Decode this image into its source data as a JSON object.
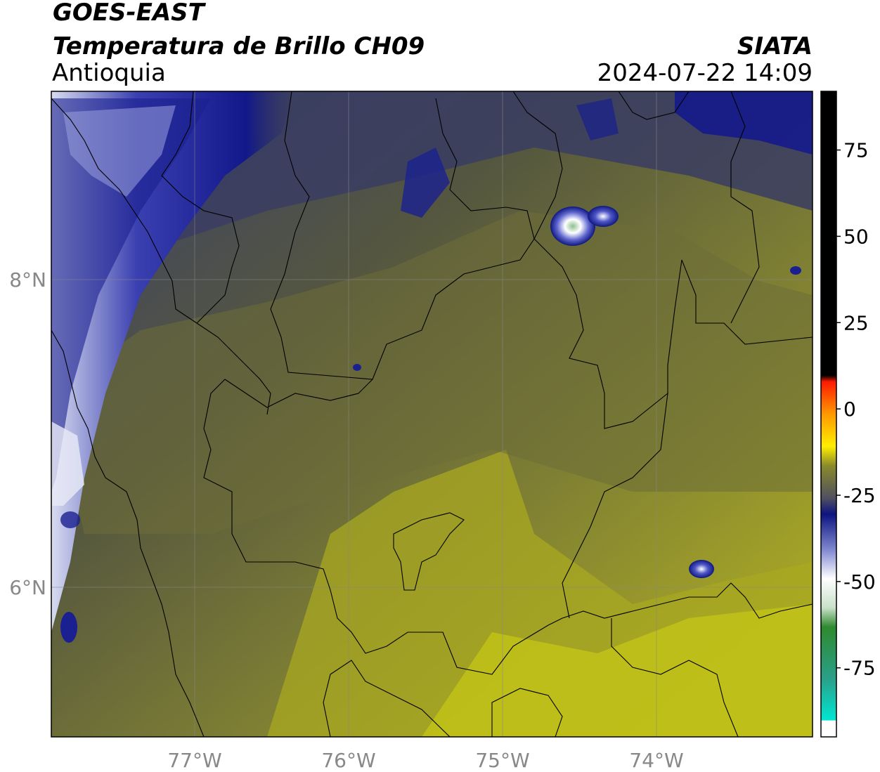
{
  "header": {
    "satellite": "GOES-EAST",
    "product": "Temperatura de Brillo CH09",
    "region": "Antioquia",
    "agency": "SIATA",
    "datetime": "2024-07-22 14:09"
  },
  "map": {
    "lon_labels": [
      "77°W",
      "76°W",
      "75°W",
      "74°W"
    ],
    "lat_labels": [
      "8°N",
      "6°N"
    ],
    "lon_range": [
      -77.95,
      -72.98
    ],
    "lat_range": [
      5.05,
      9.25
    ],
    "gridlines": true
  },
  "colorbar": {
    "ticks": [
      "75",
      "50",
      "25",
      "0",
      "-25",
      "-50",
      "-75"
    ],
    "tick_values": [
      75,
      50,
      25,
      0,
      -25,
      -50,
      -75
    ],
    "range": [
      -95,
      92
    ],
    "colors": {
      "warm_black": "#000000",
      "red": "#ff1a00",
      "orange": "#ff9900",
      "yellow": "#ffee00",
      "olive": "#8a8a2a",
      "gray": "#505060",
      "navy": "#0d1480",
      "light": "#eef0f8",
      "green": "#2e8a2e",
      "cyan": "#00e6d2"
    }
  }
}
